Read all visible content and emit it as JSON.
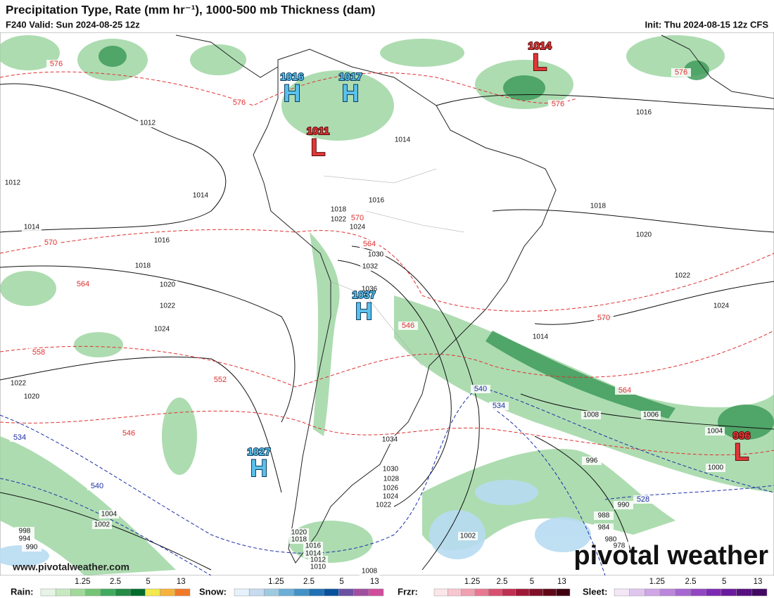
{
  "header": {
    "title": "Precipitation Type, Rate (mm hr⁻¹), 1000-500 mb Thickness (dam)",
    "valid": "F240 Valid: Sun 2024-08-25 12z",
    "init": "Init: Thu 2024-08-15 12z CFS"
  },
  "centers": [
    {
      "type": "H",
      "pressure": 1016
    },
    {
      "type": "H",
      "pressure": 1017
    },
    {
      "type": "L",
      "pressure": 1011
    },
    {
      "type": "L",
      "pressure": 1014
    },
    {
      "type": "H",
      "pressure": 1037
    },
    {
      "type": "H",
      "pressure": 1027
    },
    {
      "type": "L",
      "pressure": 996
    }
  ],
  "isobar_labels": [
    1012,
    1012,
    1014,
    1014,
    1016,
    1018,
    1020,
    1022,
    1024,
    1022,
    1020,
    1016,
    1014,
    1016,
    1018,
    1022,
    1024,
    1018,
    1020,
    1022,
    1024,
    1030,
    1032,
    1036,
    1014,
    1008,
    1006,
    1004,
    1000,
    996,
    990,
    988,
    984,
    980,
    978,
    1034,
    1030,
    1028,
    1026,
    1024,
    1022,
    1020,
    1018,
    1016,
    1014,
    1012,
    1010,
    1008,
    1002,
    1004,
    1002,
    998,
    994,
    990
  ],
  "thickness_labels_red": [
    576,
    576,
    576,
    576,
    570,
    570,
    564,
    564,
    570,
    558,
    552,
    546,
    546,
    564
  ],
  "thickness_labels_blue": [
    534,
    540,
    540,
    534,
    528
  ],
  "legend": [
    {
      "name": "Rain:",
      "ticks": [
        1.25,
        2.5,
        5,
        13
      ]
    },
    {
      "name": "Snow:",
      "ticks": [
        1.25,
        2.5,
        5,
        13
      ]
    },
    {
      "name": "Frzr:",
      "ticks": [
        1.25,
        2.5,
        5,
        13
      ]
    },
    {
      "name": "Sleet:",
      "ticks": [
        1.25,
        2.5,
        5,
        13
      ]
    }
  ],
  "footer": {
    "url": "www.pivotalweather.com",
    "logo": "pivotal weather"
  }
}
